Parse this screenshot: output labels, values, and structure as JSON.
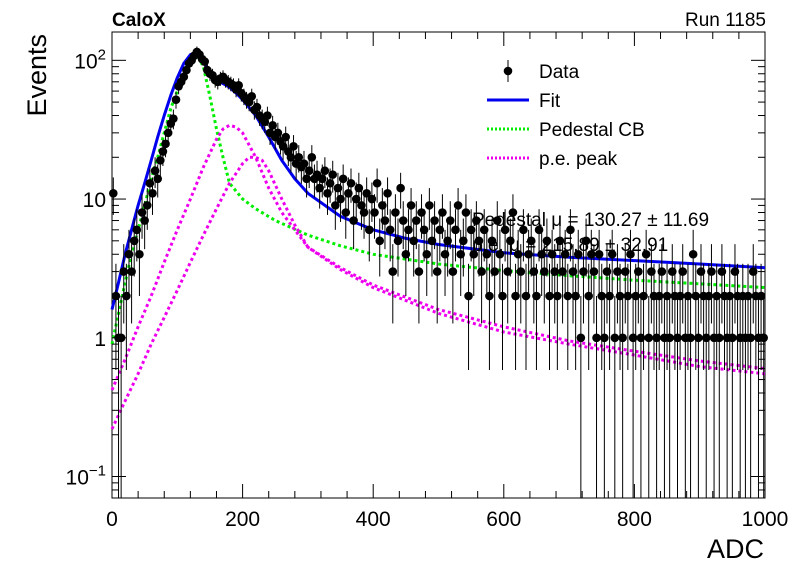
{
  "header": {
    "left": "CaloX",
    "right": "Run 1185"
  },
  "chart_data": {
    "type": "scatter",
    "title": "",
    "xlabel": "ADC",
    "ylabel": "Events",
    "xlim": [
      0,
      1000
    ],
    "ylim": [
      0.07,
      160
    ],
    "yscale": "log",
    "grid": false,
    "legend_position": "top-right",
    "x_ticks": [
      {
        "v": 0,
        "label": "0"
      },
      {
        "v": 200,
        "label": "200"
      },
      {
        "v": 400,
        "label": "400"
      },
      {
        "v": 600,
        "label": "600"
      },
      {
        "v": 800,
        "label": "800"
      },
      {
        "v": 1000,
        "label": "1000"
      }
    ],
    "y_ticks": [
      {
        "v": 0.1,
        "base": "10",
        "exp": "−1"
      },
      {
        "v": 1,
        "base": "1",
        "exp": ""
      },
      {
        "v": 10,
        "base": "10",
        "exp": ""
      },
      {
        "v": 100,
        "base": "10",
        "exp": "2"
      }
    ],
    "annotation": "Pedestal μ = 130.27 ± 11.69",
    "annotation2": "p.e. μ = 215.89 ± 32.91",
    "legend": [
      {
        "label": "Data",
        "style": "marker",
        "color": "#000000"
      },
      {
        "label": "Fit",
        "style": "solid",
        "color": "#0000ee"
      },
      {
        "label": "Pedestal CB",
        "style": "dotted",
        "color": "#00ee00"
      },
      {
        "label": "p.e. peak",
        "style": "dotted",
        "color": "#ee00ee"
      }
    ],
    "series": [
      {
        "name": "Data",
        "bin_width": 4,
        "points": [
          [
            2,
            11
          ],
          [
            6,
            2
          ],
          [
            10,
            1
          ],
          [
            14,
            1
          ],
          [
            18,
            3
          ],
          [
            22,
            2
          ],
          [
            26,
            4
          ],
          [
            30,
            3
          ],
          [
            34,
            5
          ],
          [
            38,
            6
          ],
          [
            42,
            4
          ],
          [
            46,
            8
          ],
          [
            50,
            7
          ],
          [
            54,
            9
          ],
          [
            58,
            13
          ],
          [
            62,
            11
          ],
          [
            66,
            16
          ],
          [
            70,
            14
          ],
          [
            74,
            19
          ],
          [
            78,
            22
          ],
          [
            82,
            25
          ],
          [
            86,
            30
          ],
          [
            90,
            35
          ],
          [
            94,
            38
          ],
          [
            98,
            52
          ],
          [
            102,
            65
          ],
          [
            106,
            70
          ],
          [
            110,
            76
          ],
          [
            114,
            85
          ],
          [
            118,
            95
          ],
          [
            122,
            100
          ],
          [
            126,
            108
          ],
          [
            130,
            115
          ],
          [
            134,
            110
          ],
          [
            138,
            102
          ],
          [
            142,
            98
          ],
          [
            146,
            85
          ],
          [
            150,
            80
          ],
          [
            154,
            78
          ],
          [
            158,
            72
          ],
          [
            162,
            70
          ],
          [
            166,
            74
          ],
          [
            170,
            76
          ],
          [
            174,
            72
          ],
          [
            178,
            70
          ],
          [
            182,
            68
          ],
          [
            186,
            66
          ],
          [
            190,
            62
          ],
          [
            194,
            66
          ],
          [
            198,
            58
          ],
          [
            202,
            55
          ],
          [
            206,
            52
          ],
          [
            210,
            50
          ],
          [
            214,
            55
          ],
          [
            218,
            44
          ],
          [
            222,
            46
          ],
          [
            226,
            40
          ],
          [
            230,
            38
          ],
          [
            234,
            36
          ],
          [
            238,
            40
          ],
          [
            242,
            30
          ],
          [
            246,
            34
          ],
          [
            250,
            28
          ],
          [
            254,
            30
          ],
          [
            258,
            26
          ],
          [
            262,
            24
          ],
          [
            266,
            28
          ],
          [
            270,
            22
          ],
          [
            274,
            20
          ],
          [
            278,
            24
          ],
          [
            282,
            18
          ],
          [
            286,
            20
          ],
          [
            290,
            17
          ],
          [
            294,
            18
          ],
          [
            298,
            14
          ],
          [
            302,
            16
          ],
          [
            306,
            20
          ],
          [
            310,
            14
          ],
          [
            314,
            15
          ],
          [
            318,
            12
          ],
          [
            322,
            14
          ],
          [
            326,
            16
          ],
          [
            330,
            11
          ],
          [
            334,
            13
          ],
          [
            338,
            15
          ],
          [
            342,
            9
          ],
          [
            346,
            12
          ],
          [
            350,
            10
          ],
          [
            354,
            14
          ],
          [
            358,
            8
          ],
          [
            362,
            11
          ],
          [
            366,
            13
          ],
          [
            370,
            7
          ],
          [
            374,
            10
          ],
          [
            378,
            12
          ],
          [
            382,
            9
          ],
          [
            386,
            8
          ],
          [
            390,
            11
          ],
          [
            394,
            6
          ],
          [
            398,
            10
          ],
          [
            402,
            8
          ],
          [
            406,
            13
          ],
          [
            410,
            5
          ],
          [
            414,
            9
          ],
          [
            418,
            7
          ],
          [
            422,
            11
          ],
          [
            426,
            6
          ],
          [
            430,
            3
          ],
          [
            434,
            8
          ],
          [
            438,
            5
          ],
          [
            442,
            12
          ],
          [
            446,
            7
          ],
          [
            450,
            4
          ],
          [
            454,
            6
          ],
          [
            458,
            9
          ],
          [
            462,
            5
          ],
          [
            466,
            7
          ],
          [
            470,
            3
          ],
          [
            474,
            8
          ],
          [
            478,
            6
          ],
          [
            482,
            4
          ],
          [
            486,
            9
          ],
          [
            490,
            5
          ],
          [
            494,
            7
          ],
          [
            498,
            3
          ],
          [
            502,
            6
          ],
          [
            506,
            8
          ],
          [
            510,
            4
          ],
          [
            514,
            5
          ],
          [
            518,
            7
          ],
          [
            522,
            3
          ],
          [
            526,
            6
          ],
          [
            530,
            9
          ],
          [
            534,
            4
          ],
          [
            538,
            5
          ],
          [
            542,
            8
          ],
          [
            546,
            2
          ],
          [
            550,
            6
          ],
          [
            554,
            4
          ],
          [
            558,
            7
          ],
          [
            562,
            5
          ],
          [
            566,
            3
          ],
          [
            570,
            6
          ],
          [
            574,
            4
          ],
          [
            578,
            2
          ],
          [
            582,
            5
          ],
          [
            586,
            3
          ],
          [
            590,
            7
          ],
          [
            594,
            4
          ],
          [
            598,
            2
          ],
          [
            602,
            6
          ],
          [
            606,
            3
          ],
          [
            610,
            5
          ],
          [
            614,
            8
          ],
          [
            618,
            2
          ],
          [
            622,
            4
          ],
          [
            626,
            3
          ],
          [
            630,
            6
          ],
          [
            634,
            2
          ],
          [
            638,
            4
          ],
          [
            642,
            5
          ],
          [
            646,
            3
          ],
          [
            650,
            2
          ],
          [
            654,
            6
          ],
          [
            658,
            4
          ],
          [
            662,
            3
          ],
          [
            666,
            5
          ],
          [
            670,
            2
          ],
          [
            674,
            4
          ],
          [
            678,
            3
          ],
          [
            682,
            2
          ],
          [
            686,
            5
          ],
          [
            690,
            3
          ],
          [
            694,
            4
          ],
          [
            698,
            2
          ],
          [
            702,
            6
          ],
          [
            706,
            3
          ],
          [
            710,
            2
          ],
          [
            714,
            4
          ],
          [
            718,
            1
          ],
          [
            722,
            3
          ],
          [
            726,
            5
          ],
          [
            730,
            2
          ],
          [
            734,
            4
          ],
          [
            738,
            3
          ],
          [
            742,
            1
          ],
          [
            746,
            4
          ],
          [
            750,
            2
          ],
          [
            754,
            1
          ],
          [
            758,
            3
          ],
          [
            762,
            2
          ],
          [
            766,
            4
          ],
          [
            770,
            1
          ],
          [
            774,
            3
          ],
          [
            778,
            2
          ],
          [
            782,
            1
          ],
          [
            786,
            3
          ],
          [
            790,
            2
          ],
          [
            794,
            4
          ],
          [
            798,
            1
          ],
          [
            802,
            2
          ],
          [
            806,
            3
          ],
          [
            810,
            1
          ],
          [
            814,
            2
          ],
          [
            818,
            4
          ],
          [
            822,
            1
          ],
          [
            826,
            3
          ],
          [
            830,
            2
          ],
          [
            834,
            1
          ],
          [
            838,
            2
          ],
          [
            842,
            3
          ],
          [
            846,
            1
          ],
          [
            850,
            2
          ],
          [
            854,
            1
          ],
          [
            858,
            3
          ],
          [
            862,
            2
          ],
          [
            866,
            1
          ],
          [
            870,
            2
          ],
          [
            874,
            3
          ],
          [
            878,
            1
          ],
          [
            882,
            2
          ],
          [
            886,
            1
          ],
          [
            890,
            4
          ],
          [
            894,
            2
          ],
          [
            898,
            1
          ],
          [
            902,
            3
          ],
          [
            906,
            2
          ],
          [
            910,
            1
          ],
          [
            914,
            2
          ],
          [
            918,
            3
          ],
          [
            922,
            1
          ],
          [
            926,
            2
          ],
          [
            930,
            1
          ],
          [
            934,
            3
          ],
          [
            938,
            2
          ],
          [
            942,
            1
          ],
          [
            946,
            2
          ],
          [
            950,
            1
          ],
          [
            954,
            3
          ],
          [
            958,
            2
          ],
          [
            962,
            1
          ],
          [
            966,
            2
          ],
          [
            970,
            1
          ],
          [
            974,
            2
          ],
          [
            978,
            1
          ],
          [
            982,
            3
          ],
          [
            986,
            2
          ],
          [
            990,
            1
          ],
          [
            994,
            2
          ],
          [
            998,
            1
          ]
        ]
      },
      {
        "name": "Fit",
        "x": [
          0,
          10,
          20,
          30,
          40,
          50,
          60,
          70,
          80,
          90,
          100,
          110,
          120,
          130,
          140,
          150,
          160,
          170,
          180,
          190,
          200,
          220,
          240,
          260,
          280,
          300,
          350,
          400,
          450,
          500,
          600,
          700,
          800,
          900,
          1000
        ],
        "y": [
          1.6,
          2.5,
          4,
          6,
          9,
          13,
          19,
          28,
          40,
          56,
          75,
          95,
          110,
          115,
          100,
          82,
          72,
          68,
          64,
          58,
          52,
          40,
          28,
          19,
          14,
          11,
          7.5,
          6,
          5.2,
          4.7,
          4.1,
          3.8,
          3.6,
          3.4,
          3.2
        ]
      },
      {
        "name": "Pedestal CB",
        "x": [
          0,
          10,
          20,
          30,
          40,
          50,
          60,
          70,
          80,
          90,
          100,
          110,
          120,
          130,
          140,
          150,
          160,
          170,
          180,
          200,
          220,
          250,
          300,
          350,
          400,
          500,
          600,
          700,
          800,
          900,
          1000
        ],
        "y": [
          0.9,
          1.5,
          2.5,
          4,
          6,
          9,
          14,
          20,
          30,
          45,
          60,
          80,
          100,
          110,
          90,
          55,
          32,
          20,
          13,
          10,
          8.5,
          7,
          5.5,
          4.6,
          4,
          3.4,
          3.05,
          2.8,
          2.6,
          2.45,
          2.3
        ]
      },
      {
        "name": "p.e. peak",
        "x": [
          0,
          20,
          40,
          60,
          80,
          100,
          120,
          140,
          160,
          170,
          180,
          190,
          200,
          220,
          240,
          260,
          280,
          300,
          350,
          400,
          500,
          600,
          700,
          800,
          900,
          1000
        ],
        "y": [
          0.42,
          0.7,
          1.2,
          2,
          3.5,
          6,
          10,
          17,
          27,
          32,
          34,
          33,
          30,
          20,
          12,
          8,
          6,
          4.5,
          3.2,
          2.4,
          1.6,
          1.2,
          0.95,
          0.8,
          0.68,
          0.6
        ]
      },
      {
        "name": "p.e. peak",
        "x": [
          0,
          20,
          40,
          60,
          80,
          100,
          120,
          140,
          160,
          180,
          200,
          210,
          220,
          230,
          240,
          260,
          280,
          300,
          350,
          400,
          500,
          600,
          700,
          800,
          900,
          1000
        ],
        "y": [
          0.22,
          0.35,
          0.55,
          0.9,
          1.4,
          2.2,
          3.5,
          5.5,
          8.5,
          13,
          18,
          20,
          20,
          19,
          16,
          10,
          6.5,
          4.5,
          3.1,
          2.3,
          1.5,
          1.1,
          0.9,
          0.75,
          0.62,
          0.55
        ]
      }
    ]
  }
}
